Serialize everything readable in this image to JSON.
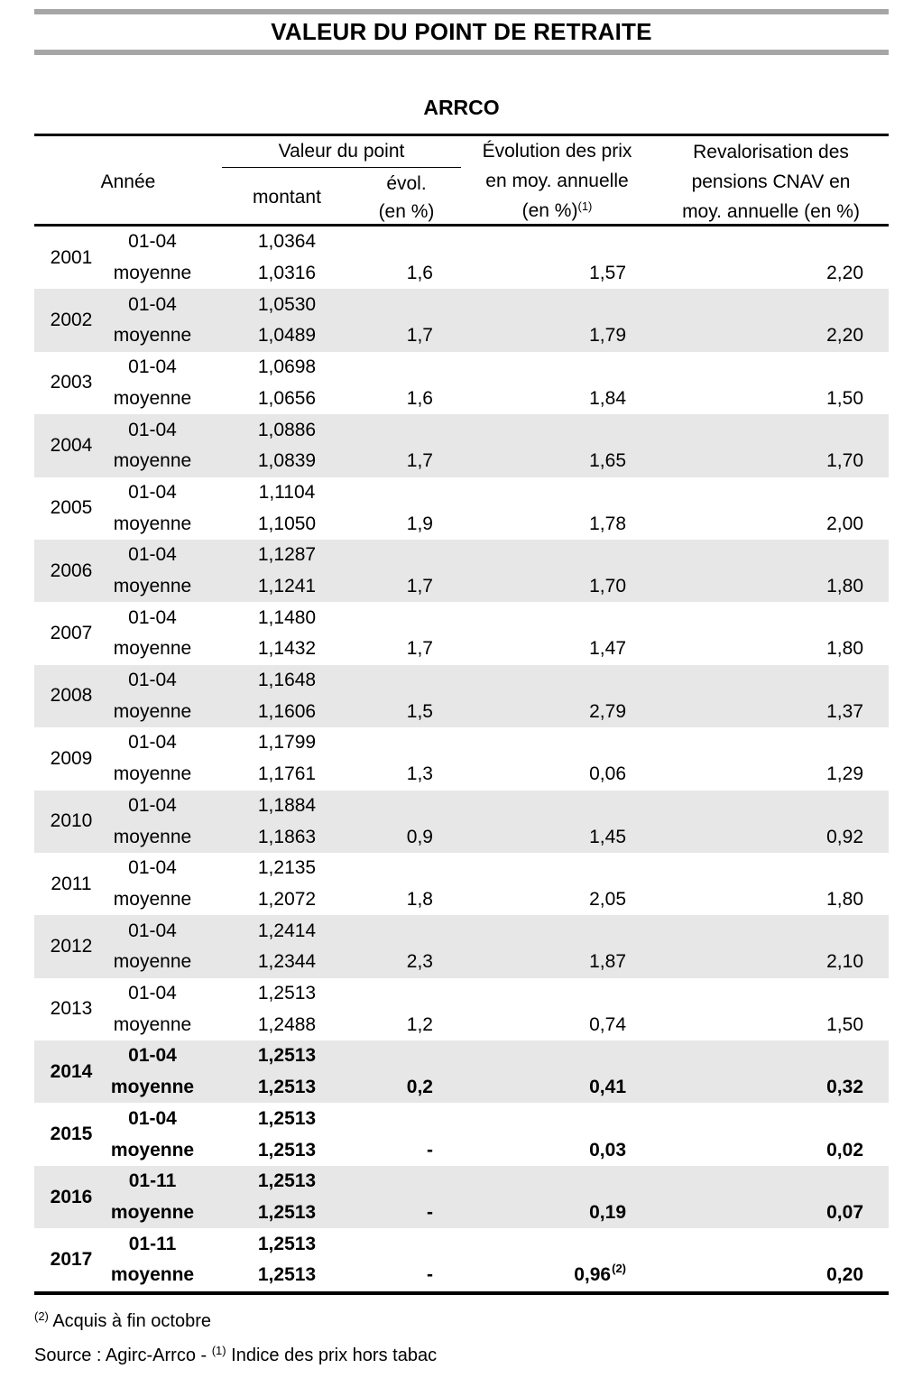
{
  "page": {
    "title": "VALEUR DU POINT DE RETRAITE",
    "subtitle": "ARRCO"
  },
  "colors": {
    "banner_bar": "#a6a6a6",
    "row_shade": "#e7e7e7",
    "text": "#000000",
    "border": "#000000"
  },
  "table": {
    "header": {
      "annee": "Année",
      "valeur_group": "Valeur du point",
      "montant": "montant",
      "evol_line1": "évol.",
      "evol_line2": "(en %)",
      "prix_lines": [
        "Évolution des prix",
        "en moy. annuelle",
        "(en %)"
      ],
      "prix_sup": "(1)",
      "cnav_lines": [
        "Revalorisation des",
        "pensions CNAV en",
        "moy. annuelle (en %)"
      ]
    },
    "rows": [
      {
        "year": "2001",
        "period1": "01-04",
        "montant1": "1,0364",
        "period2": "moyenne",
        "montant2": "1,0316",
        "evol": "1,6",
        "prix": "1,57",
        "prix_sup": "",
        "cnav": "2,20",
        "shaded": false,
        "bold": false
      },
      {
        "year": "2002",
        "period1": "01-04",
        "montant1": "1,0530",
        "period2": "moyenne",
        "montant2": "1,0489",
        "evol": "1,7",
        "prix": "1,79",
        "prix_sup": "",
        "cnav": "2,20",
        "shaded": true,
        "bold": false
      },
      {
        "year": "2003",
        "period1": "01-04",
        "montant1": "1,0698",
        "period2": "moyenne",
        "montant2": "1,0656",
        "evol": "1,6",
        "prix": "1,84",
        "prix_sup": "",
        "cnav": "1,50",
        "shaded": false,
        "bold": false
      },
      {
        "year": "2004",
        "period1": "01-04",
        "montant1": "1,0886",
        "period2": "moyenne",
        "montant2": "1,0839",
        "evol": "1,7",
        "prix": "1,65",
        "prix_sup": "",
        "cnav": "1,70",
        "shaded": true,
        "bold": false
      },
      {
        "year": "2005",
        "period1": "01-04",
        "montant1": "1,1104",
        "period2": "moyenne",
        "montant2": "1,1050",
        "evol": "1,9",
        "prix": "1,78",
        "prix_sup": "",
        "cnav": "2,00",
        "shaded": false,
        "bold": false
      },
      {
        "year": "2006",
        "period1": "01-04",
        "montant1": "1,1287",
        "period2": "moyenne",
        "montant2": "1,1241",
        "evol": "1,7",
        "prix": "1,70",
        "prix_sup": "",
        "cnav": "1,80",
        "shaded": true,
        "bold": false
      },
      {
        "year": "2007",
        "period1": "01-04",
        "montant1": "1,1480",
        "period2": "moyenne",
        "montant2": "1,1432",
        "evol": "1,7",
        "prix": "1,47",
        "prix_sup": "",
        "cnav": "1,80",
        "shaded": false,
        "bold": false
      },
      {
        "year": "2008",
        "period1": "01-04",
        "montant1": "1,1648",
        "period2": "moyenne",
        "montant2": "1,1606",
        "evol": "1,5",
        "prix": "2,79",
        "prix_sup": "",
        "cnav": "1,37",
        "shaded": true,
        "bold": false
      },
      {
        "year": "2009",
        "period1": "01-04",
        "montant1": "1,1799",
        "period2": "moyenne",
        "montant2": "1,1761",
        "evol": "1,3",
        "prix": "0,06",
        "prix_sup": "",
        "cnav": "1,29",
        "shaded": false,
        "bold": false
      },
      {
        "year": "2010",
        "period1": "01-04",
        "montant1": "1,1884",
        "period2": "moyenne",
        "montant2": "1,1863",
        "evol": "0,9",
        "prix": "1,45",
        "prix_sup": "",
        "cnav": "0,92",
        "shaded": true,
        "bold": false
      },
      {
        "year": "2011",
        "period1": "01-04",
        "montant1": "1,2135",
        "period2": "moyenne",
        "montant2": "1,2072",
        "evol": "1,8",
        "prix": "2,05",
        "prix_sup": "",
        "cnav": "1,80",
        "shaded": false,
        "bold": false
      },
      {
        "year": "2012",
        "period1": "01-04",
        "montant1": "1,2414",
        "period2": "moyenne",
        "montant2": "1,2344",
        "evol": "2,3",
        "prix": "1,87",
        "prix_sup": "",
        "cnav": "2,10",
        "shaded": true,
        "bold": false
      },
      {
        "year": "2013",
        "period1": "01-04",
        "montant1": "1,2513",
        "period2": "moyenne",
        "montant2": "1,2488",
        "evol": "1,2",
        "prix": "0,74",
        "prix_sup": "",
        "cnav": "1,50",
        "shaded": false,
        "bold": false
      },
      {
        "year": "2014",
        "period1": "01-04",
        "montant1": "1,2513",
        "period2": "moyenne",
        "montant2": "1,2513",
        "evol": "0,2",
        "prix": "0,41",
        "prix_sup": "",
        "cnav": "0,32",
        "shaded": true,
        "bold": true
      },
      {
        "year": "2015",
        "period1": "01-04",
        "montant1": "1,2513",
        "period2": "moyenne",
        "montant2": "1,2513",
        "evol": "-",
        "prix": "0,03",
        "prix_sup": "",
        "cnav": "0,02",
        "shaded": false,
        "bold": true
      },
      {
        "year": "2016",
        "period1": "01-11",
        "montant1": "1,2513",
        "period2": "moyenne",
        "montant2": "1,2513",
        "evol": "-",
        "prix": "0,19",
        "prix_sup": "",
        "cnav": "0,07",
        "shaded": true,
        "bold": true
      },
      {
        "year": "2017",
        "period1": "01-11",
        "montant1": "1,2513",
        "period2": "moyenne",
        "montant2": "1,2513",
        "evol": "-",
        "prix": "0,96",
        "prix_sup": "(2)",
        "cnav": "0,20",
        "shaded": false,
        "bold": true
      }
    ]
  },
  "footnotes": {
    "line1_sup": "(2)",
    "line1_text": " Acquis à fin octobre",
    "line2_pre": "Source : Agirc-Arrco - ",
    "line2_sup": "(1)",
    "line2_post": " Indice des prix hors tabac"
  }
}
